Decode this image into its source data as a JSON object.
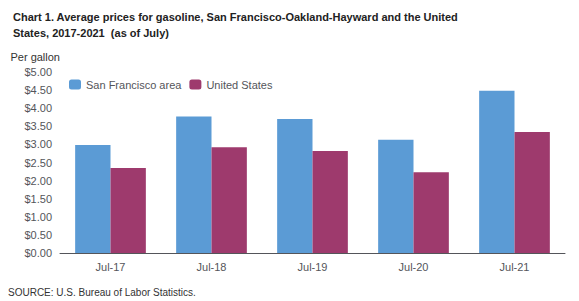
{
  "chart_data": {
    "type": "bar",
    "title": "Chart 1. Average prices for gasoline, San Francisco-Oakland-Hayward and the United",
    "subtitle": "States, 2017-2021  (as of July)",
    "ylabel": "Per gallon",
    "annotations": [
      "SOURCE: U.S. Bureau of Labor Statistics."
    ],
    "categories": [
      "Jul-17",
      "Jul-18",
      "Jul-19",
      "Jul-20",
      "Jul-21"
    ],
    "series": [
      {
        "name": "San Francisco area",
        "color": "#5B9BD5",
        "values": [
          2.98,
          3.77,
          3.7,
          3.13,
          4.48
        ]
      },
      {
        "name": "United States",
        "color": "#9E3A6D",
        "values": [
          2.35,
          2.92,
          2.82,
          2.23,
          3.34
        ]
      }
    ],
    "ylim": [
      0,
      5.0
    ],
    "yticks": [
      {
        "value": 0.0,
        "label": "$0.00"
      },
      {
        "value": 0.5,
        "label": "$0.50"
      },
      {
        "value": 1.0,
        "label": "$1.00"
      },
      {
        "value": 1.5,
        "label": "$1.50"
      },
      {
        "value": 2.0,
        "label": "$2.00"
      },
      {
        "value": 2.5,
        "label": "$2.50"
      },
      {
        "value": 3.0,
        "label": "$3.00"
      },
      {
        "value": 3.5,
        "label": "$3.50"
      },
      {
        "value": 4.0,
        "label": "$4.00"
      },
      {
        "value": 4.5,
        "label": "$4.50"
      },
      {
        "value": 5.0,
        "label": "$5.00"
      }
    ],
    "grid": false,
    "legend": "upper left"
  }
}
